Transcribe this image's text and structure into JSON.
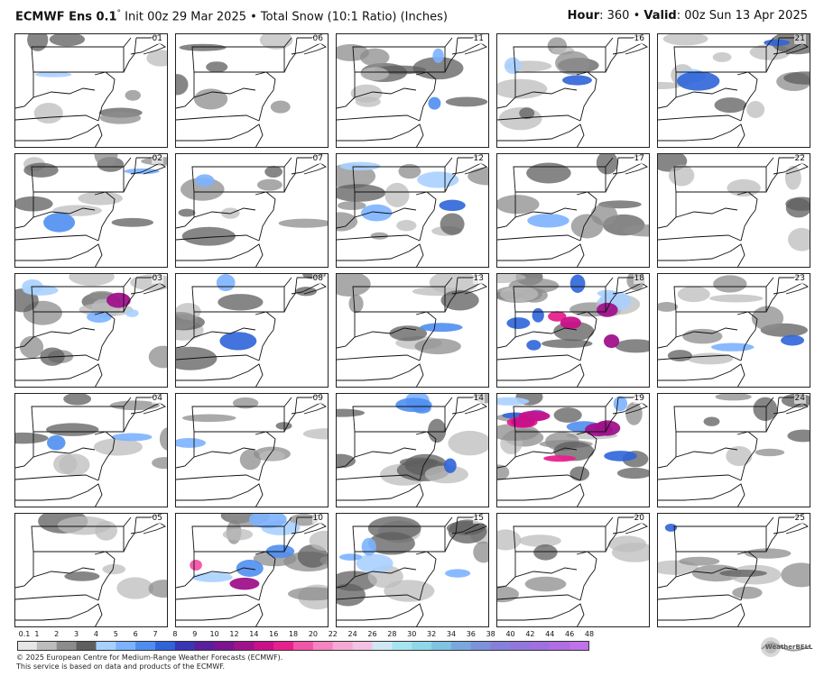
{
  "header": {
    "model": "ECMWF Ens 0.1",
    "degree": "°",
    "init": " Init 00z 29 Mar 2025 • Total Snow (10:1 Ratio) (Inches)",
    "hour_label": "Hour",
    "hour_value": ": 360 • ",
    "valid_label": "Valid",
    "valid_value": ": 00z Sun 13 Apr 2025"
  },
  "members": [
    [
      "01",
      "06",
      "11",
      "16",
      "21"
    ],
    [
      "02",
      "07",
      "12",
      "17",
      "22"
    ],
    [
      "03",
      "08",
      "13",
      "18",
      "23"
    ],
    [
      "04",
      "09",
      "14",
      "19",
      "24"
    ],
    [
      "05",
      "10",
      "15",
      "20",
      "25"
    ]
  ],
  "snow_intensity": [
    [
      0.15,
      0.05,
      0.35,
      0.25,
      0.45
    ],
    [
      0.3,
      0.15,
      0.55,
      0.2,
      0.1
    ],
    [
      0.6,
      0.35,
      0.2,
      0.85,
      0.35
    ],
    [
      0.35,
      0.15,
      0.55,
      0.95,
      0.1
    ],
    [
      0.1,
      0.65,
      0.55,
      0.1,
      0.2
    ]
  ],
  "colorbar": {
    "labels": [
      "0.1",
      "1",
      "2",
      "3",
      "4",
      "5",
      "6",
      "7",
      "8",
      "9",
      "10",
      "12",
      "14",
      "16",
      "18",
      "20",
      "22",
      "24",
      "26",
      "28",
      "30",
      "32",
      "34",
      "36",
      "38",
      "40",
      "42",
      "44",
      "46",
      "48"
    ],
    "colors": [
      "#e6e6e6",
      "#bcbcbc",
      "#8c8c8c",
      "#5e5e5e",
      "#a8d0ff",
      "#7cb2ff",
      "#4f8ef0",
      "#2f64d8",
      "#3a36b4",
      "#5a1e9e",
      "#7a1490",
      "#a0128c",
      "#c8108a",
      "#e8208e",
      "#f255a8",
      "#f584c0",
      "#f6a8d4",
      "#f2c2e2",
      "#cfe8f4",
      "#a6e4f0",
      "#8fd8ea",
      "#7fc2e2",
      "#7aa8de",
      "#7c92da",
      "#8680da",
      "#9276dc",
      "#a070e0",
      "#b06ee4",
      "#c072e8"
    ]
  },
  "footer": {
    "line1": "© 2025 European Centre for Medium-Range Weather Forecasts (ECMWF).",
    "line2": "This service is based on data and products of the ECMWF."
  },
  "logo": {
    "text": "WeatherBELL"
  }
}
